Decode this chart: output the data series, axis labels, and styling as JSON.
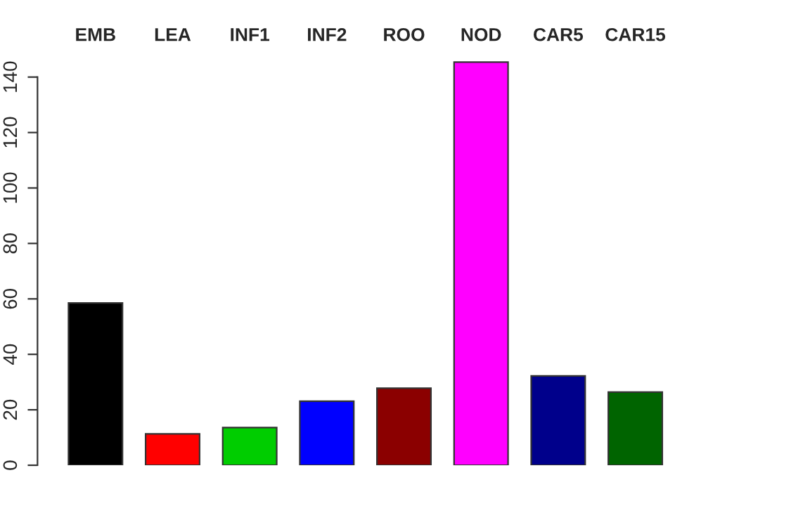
{
  "chart_data": {
    "type": "bar",
    "categories": [
      "EMB",
      "LEA",
      "INF1",
      "INF2",
      "ROO",
      "NOD",
      "CAR5",
      "CAR15"
    ],
    "values": [
      58.5,
      11.3,
      13.6,
      23.1,
      27.8,
      145.4,
      32.2,
      26.4
    ],
    "colors": [
      "#000000",
      "#ff0000",
      "#00cd00",
      "#0000ff",
      "#8b0000",
      "#ff00ff",
      "#00008b",
      "#006400"
    ],
    "ylim": [
      0,
      146
    ],
    "yticks": [
      0,
      20,
      40,
      60,
      80,
      100,
      120,
      140
    ]
  }
}
